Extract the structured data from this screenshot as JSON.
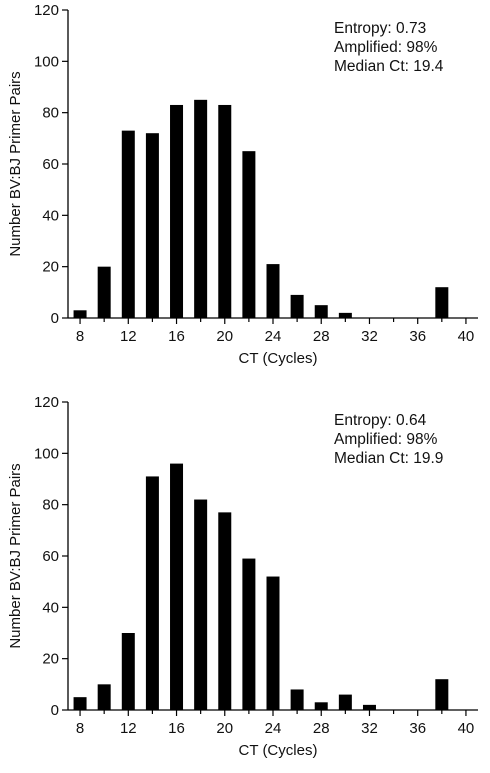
{
  "chart_data": [
    {
      "type": "bar",
      "xlabel": "CT (Cycles)",
      "ylabel": "Number BV:BJ Primer Pairs",
      "xlim": [
        7,
        41
      ],
      "ylim": [
        0,
        120
      ],
      "x_ticks": [
        "8",
        "12",
        "16",
        "20",
        "24",
        "28",
        "32",
        "36",
        "40"
      ],
      "x_minor_ticks": [
        10,
        14,
        18,
        22,
        26,
        30,
        34,
        38
      ],
      "y_ticks": [
        "0",
        "20",
        "40",
        "60",
        "80",
        "100",
        "120"
      ],
      "x": [
        8,
        10,
        12,
        14,
        16,
        18,
        20,
        22,
        24,
        26,
        28,
        30,
        38
      ],
      "values": [
        3,
        20,
        73,
        72,
        83,
        85,
        83,
        65,
        21,
        9,
        5,
        2,
        12
      ],
      "annotations": [
        "Entropy: 0.73",
        "Amplified: 98%",
        "Median Ct: 19.4"
      ],
      "grid": false
    },
    {
      "type": "bar",
      "xlabel": "CT (Cycles)",
      "ylabel": "Number BV:BJ Primer Pairs",
      "xlim": [
        7,
        41
      ],
      "ylim": [
        0,
        120
      ],
      "x_ticks": [
        "8",
        "12",
        "16",
        "20",
        "24",
        "28",
        "32",
        "36",
        "40"
      ],
      "x_minor_ticks": [
        10,
        14,
        18,
        22,
        26,
        30,
        34,
        38
      ],
      "y_ticks": [
        "0",
        "20",
        "40",
        "60",
        "80",
        "100",
        "120"
      ],
      "x": [
        8,
        10,
        12,
        14,
        16,
        18,
        20,
        22,
        24,
        26,
        28,
        30,
        32,
        38
      ],
      "values": [
        5,
        10,
        30,
        91,
        96,
        82,
        77,
        59,
        52,
        8,
        3,
        6,
        2,
        12
      ],
      "annotations": [
        "Entropy: 0.64",
        "Amplified: 98%",
        "Median Ct: 19.9"
      ],
      "grid": false
    }
  ]
}
